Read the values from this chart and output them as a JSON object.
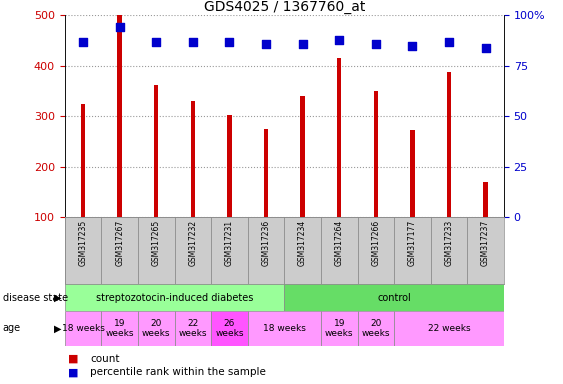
{
  "title": "GDS4025 / 1367760_at",
  "samples": [
    "GSM317235",
    "GSM317267",
    "GSM317265",
    "GSM317232",
    "GSM317231",
    "GSM317236",
    "GSM317234",
    "GSM317264",
    "GSM317266",
    "GSM317177",
    "GSM317233",
    "GSM317237"
  ],
  "counts": [
    325,
    500,
    362,
    330,
    302,
    275,
    340,
    415,
    350,
    272,
    388,
    170
  ],
  "percentile_ranks": [
    87,
    94,
    87,
    87,
    87,
    86,
    86,
    88,
    86,
    85,
    87,
    84
  ],
  "percentile_max": 100,
  "bar_color": "#cc0000",
  "dot_color": "#0000cc",
  "y_min": 100,
  "y_max": 500,
  "y_ticks": [
    100,
    200,
    300,
    400,
    500
  ],
  "y2_ticks": [
    0,
    25,
    50,
    75,
    100
  ],
  "tick_label_color": "#cc0000",
  "y2_label_color": "#0000cc",
  "background_color": "#ffffff",
  "grid_color": "#999999",
  "bar_width": 0.12,
  "dot_size": 28,
  "sample_box_color": "#cccccc",
  "sample_box_edge": "#888888",
  "ds_groups": [
    {
      "label": "streptozotocin-induced diabetes",
      "start": 0,
      "end": 6,
      "color": "#99ff99"
    },
    {
      "label": "control",
      "start": 6,
      "end": 12,
      "color": "#66dd66"
    }
  ],
  "age_groups": [
    {
      "label": "18 weeks",
      "start": 0,
      "end": 1,
      "color": "#ff99ff"
    },
    {
      "label": "19\nweeks",
      "start": 1,
      "end": 2,
      "color": "#ff99ff"
    },
    {
      "label": "20\nweeks",
      "start": 2,
      "end": 3,
      "color": "#ff99ff"
    },
    {
      "label": "22\nweeks",
      "start": 3,
      "end": 4,
      "color": "#ff99ff"
    },
    {
      "label": "26\nweeks",
      "start": 4,
      "end": 5,
      "color": "#ff55ff"
    },
    {
      "label": "18 weeks",
      "start": 5,
      "end": 7,
      "color": "#ff99ff"
    },
    {
      "label": "19\nweeks",
      "start": 7,
      "end": 8,
      "color": "#ff99ff"
    },
    {
      "label": "20\nweeks",
      "start": 8,
      "end": 9,
      "color": "#ff99ff"
    },
    {
      "label": "22 weeks",
      "start": 9,
      "end": 12,
      "color": "#ff99ff"
    }
  ],
  "legend_count_color": "#cc0000",
  "legend_dot_color": "#0000cc"
}
